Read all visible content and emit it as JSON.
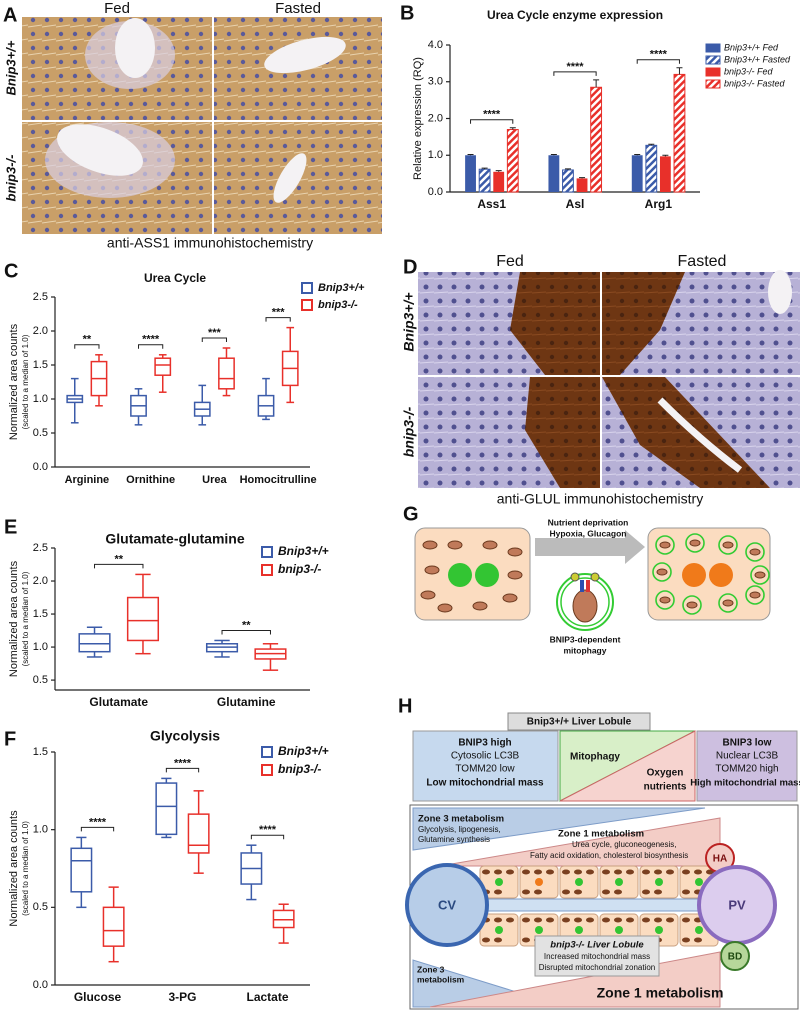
{
  "panels": {
    "A": {
      "label": "A",
      "columns": [
        "Fed",
        "Fasted"
      ],
      "rows": [
        "Bnip3+/+",
        "bnip3-/-"
      ],
      "caption": "anti-ASS1 immunohistochemistry"
    },
    "D": {
      "label": "D",
      "columns": [
        "Fed",
        "Fasted"
      ],
      "rows": [
        "Bnip3+/+",
        "bnip3-/-"
      ],
      "caption": "anti-GLUL immunohistochemistry"
    },
    "G": {
      "label": "G",
      "arrow_text": [
        "Nutrient deprivation",
        "Hypoxia, Glucagon"
      ],
      "center_text": [
        "BNIP3-dependent",
        "mitophagy"
      ]
    },
    "H": {
      "label": "H",
      "wt_title": "Bnip3+/+ Liver Lobule",
      "left_box": [
        "BNIP3 high",
        "Cytosolic LC3B",
        "TOMM20 low",
        "Low mitochondrial mass"
      ],
      "middle": [
        "Mitophagy",
        "Oxygen",
        "nutrients"
      ],
      "right_box": [
        "BNIP3 low",
        "Nuclear LC3B",
        "TOMM20 high",
        "High mitochondrial mass"
      ],
      "zone3": [
        "Zone 3 metabolism",
        "Glycolysis, lipogenesis,",
        "Glutamine synthesis"
      ],
      "zone1": [
        "Zone 1 metabolism",
        "Urea cycle, gluconeogenesis,",
        "Fatty acid oxidation, cholesterol biosynthesis"
      ],
      "vessels": [
        "HA",
        "CV",
        "PV",
        "BD"
      ],
      "ko_box": [
        "bnip3-/- Liver Lobule",
        "Increased mitochondrial mass",
        "Disrupted mitochondrial zonation"
      ],
      "ko_zone3": [
        "Zone 3",
        "metabolism"
      ],
      "ko_zone1": "Zone 1 metabolism"
    }
  },
  "chart_data": [
    {
      "type": "bar",
      "panel_label": "B",
      "title": "Urea Cycle enzyme expression",
      "ylabel": "Relative expression (RQ)",
      "categories": [
        "Ass1",
        "Asl",
        "Arg1"
      ],
      "series": [
        {
          "name": "Bnip3+/+ Fed",
          "color": "#3b5ba9",
          "hatch": false,
          "values": [
            1.0,
            1.0,
            1.0
          ],
          "errors": [
            0.02,
            0.02,
            0.02
          ]
        },
        {
          "name": "Bnip3+/+ Fasted",
          "color": "#3b5ba9",
          "hatch": true,
          "values": [
            0.62,
            0.6,
            1.27
          ],
          "errors": [
            0.03,
            0.03,
            0.03
          ]
        },
        {
          "name": "bnip3-/- Fed",
          "color": "#e8302a",
          "hatch": false,
          "values": [
            0.55,
            0.37,
            0.97
          ],
          "errors": [
            0.03,
            0.02,
            0.03
          ]
        },
        {
          "name": "bnip3-/- Fasted",
          "color": "#e8302a",
          "hatch": true,
          "values": [
            1.7,
            2.85,
            3.2
          ],
          "errors": [
            0.05,
            0.2,
            0.18
          ]
        }
      ],
      "significance": [
        "****",
        "****",
        "****"
      ],
      "ylim": [
        0,
        4
      ],
      "yticks": [
        {
          "value": 0,
          "label": "0.0"
        },
        {
          "value": 1,
          "label": "1.0"
        },
        {
          "value": 2,
          "label": "2.0"
        },
        {
          "value": 3,
          "label": "3.0"
        },
        {
          "value": 4,
          "label": "4.0"
        }
      ]
    },
    {
      "type": "box",
      "panel_label": "C",
      "title": "Urea Cycle",
      "ylabel": "Normalized area counts",
      "ylabel_note": "(scaled to a median of 1.0)",
      "categories": [
        "Arginine",
        "Ornithine",
        "Urea",
        "Homocitrulline"
      ],
      "series": [
        {
          "name": "Bnip3+/+",
          "color": "#3b5ba9",
          "values": [
            [
              0.65,
              0.95,
              1.0,
              1.05,
              1.3
            ],
            [
              0.62,
              0.75,
              0.9,
              1.05,
              1.15
            ],
            [
              0.62,
              0.75,
              0.85,
              0.95,
              1.2
            ],
            [
              0.7,
              0.75,
              0.9,
              1.05,
              1.3
            ]
          ]
        },
        {
          "name": "bnip3-/-",
          "color": "#e8302a",
          "values": [
            [
              0.9,
              1.05,
              1.3,
              1.55,
              1.65
            ],
            [
              1.1,
              1.35,
              1.5,
              1.6,
              1.65
            ],
            [
              1.05,
              1.15,
              1.3,
              1.6,
              1.75
            ],
            [
              0.95,
              1.2,
              1.45,
              1.7,
              2.05
            ]
          ]
        }
      ],
      "significance": [
        "**",
        "****",
        "***",
        "***"
      ],
      "ylim": [
        0,
        2.5
      ],
      "yticks": [
        {
          "value": 0,
          "label": "0.0"
        },
        0.5,
        {
          "value": 1,
          "label": "1.0"
        },
        1.5,
        {
          "value": 2,
          "label": "2.0"
        },
        2.5
      ]
    },
    {
      "type": "box",
      "panel_label": "E",
      "title": "Glutamate-glutamine",
      "ylabel": "Normalized area counts",
      "ylabel_note": "(scaled to a median of 1.0)",
      "categories": [
        "Glutamate",
        "Glutamine"
      ],
      "series": [
        {
          "name": "Bnip3+/+",
          "color": "#3b5ba9",
          "values": [
            [
              0.85,
              0.93,
              1.05,
              1.2,
              1.3
            ],
            [
              0.85,
              0.93,
              1.0,
              1.05,
              1.1
            ]
          ]
        },
        {
          "name": "bnip3-/-",
          "color": "#e8302a",
          "values": [
            [
              0.9,
              1.1,
              1.4,
              1.75,
              2.1
            ],
            [
              0.65,
              0.82,
              0.9,
              0.97,
              1.05
            ]
          ]
        }
      ],
      "significance": [
        "**",
        "**"
      ],
      "ylim": [
        0.35,
        2.5
      ],
      "yticks": [
        0.5,
        {
          "value": 1,
          "label": "1.0"
        },
        1.5,
        {
          "value": 2,
          "label": "2.0"
        },
        2.5
      ]
    },
    {
      "type": "box",
      "panel_label": "F",
      "title": "Glycolysis",
      "ylabel": "Normalized area counts",
      "ylabel_note": "(scaled to a median of 1.0)",
      "categories": [
        "Glucose",
        "3-PG",
        "Lactate"
      ],
      "series": [
        {
          "name": "Bnip3+/+",
          "color": "#3b5ba9",
          "values": [
            [
              0.5,
              0.6,
              0.8,
              0.88,
              0.95
            ],
            [
              0.95,
              0.97,
              1.15,
              1.3,
              1.33
            ],
            [
              0.55,
              0.65,
              0.75,
              0.85,
              0.9
            ]
          ]
        },
        {
          "name": "bnip3-/-",
          "color": "#e8302a",
          "values": [
            [
              0.15,
              0.25,
              0.35,
              0.5,
              0.63
            ],
            [
              0.72,
              0.85,
              0.9,
              1.1,
              1.25
            ],
            [
              0.27,
              0.37,
              0.42,
              0.48,
              0.52
            ]
          ]
        }
      ],
      "significance": [
        "****",
        "****",
        "****"
      ],
      "ylim": [
        0,
        1.5
      ],
      "yticks": [
        {
          "value": 0,
          "label": "0.0"
        },
        0.5,
        {
          "value": 1,
          "label": "1.0"
        },
        1.5
      ]
    }
  ]
}
